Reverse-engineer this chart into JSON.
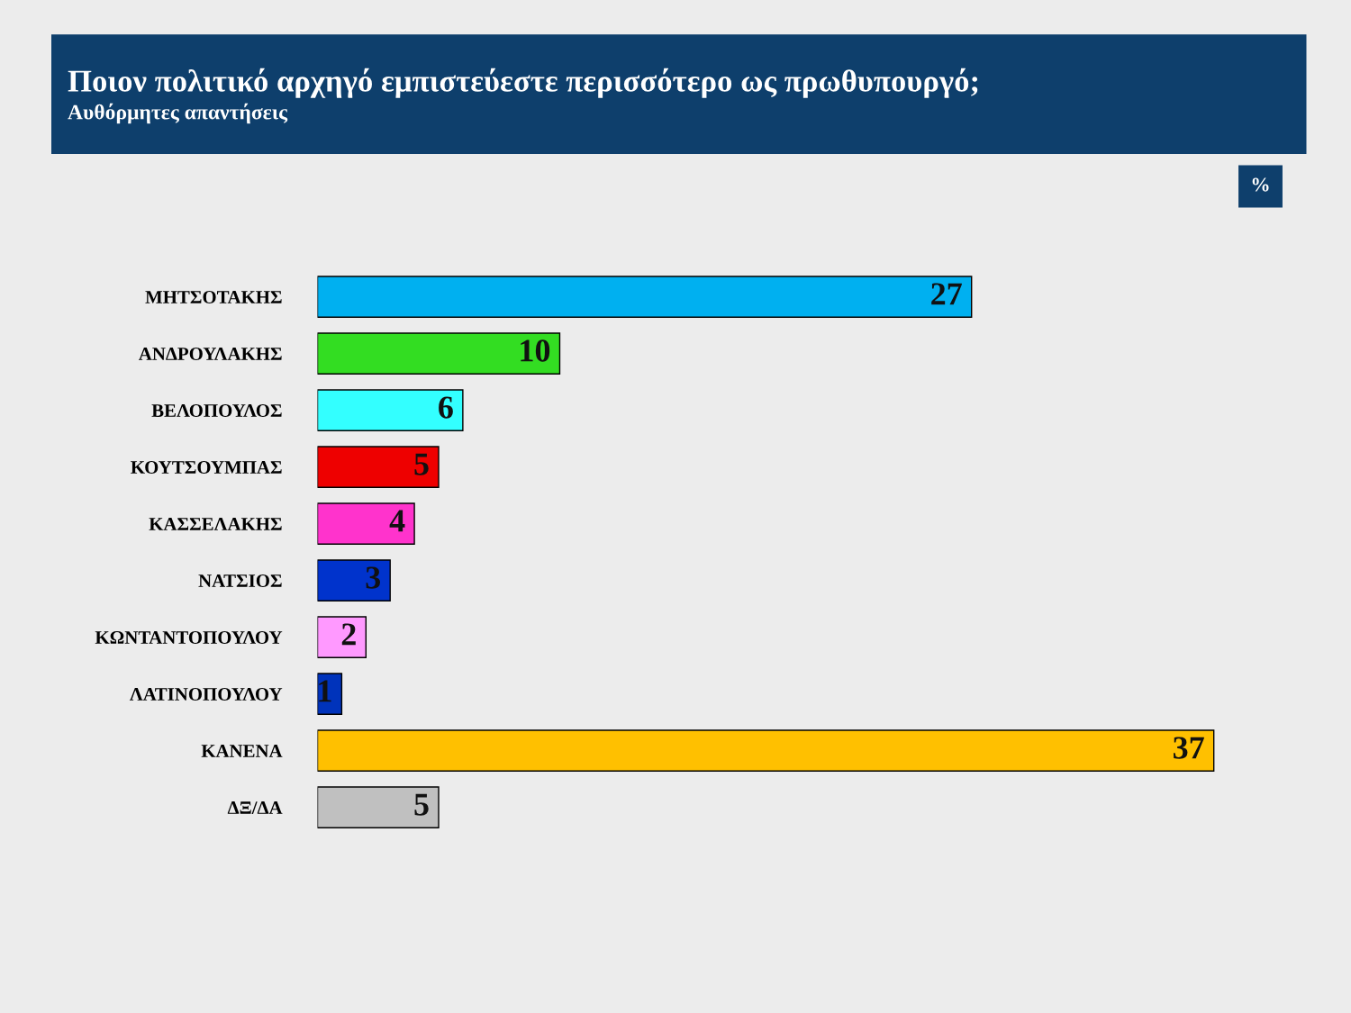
{
  "chart_data": {
    "type": "bar",
    "orientation": "horizontal",
    "title": "Ποιον πολιτικό αρχηγό εμπιστεύεστε περισσότερο ως πρωθυπουργό;",
    "subtitle": "Αυθόρμητες απαντήσεις",
    "annotations": [
      "%"
    ],
    "categories": [
      "ΜΗΤΣΟΤΑΚΗΣ",
      "ΑΝΔΡΟΥΛΑΚΗΣ",
      "ΒΕΛΟΠΟΥΛΟΣ",
      "ΚΟΥΤΣΟΥΜΠΑΣ",
      "ΚΑΣΣΕΛΑΚΗΣ",
      "ΝΑΤΣΙΟΣ",
      "ΚΩΝΤΑΝΤΟΠΟΥΛΟΥ",
      "ΛΑΤΙΝΟΠΟΥΛΟΥ",
      "ΚΑΝΕΝΑ",
      "ΔΞ/ΔΑ"
    ],
    "values": [
      27,
      10,
      6,
      5,
      4,
      3,
      2,
      1,
      37,
      5
    ],
    "colors": [
      "#00b0f0",
      "#33dd22",
      "#33ffff",
      "#ee0000",
      "#ff33cc",
      "#0033cc",
      "#ff99ff",
      "#0033bb",
      "#ffc000",
      "#c0c0c0"
    ],
    "data_labels": true,
    "grid": false,
    "legend": false
  }
}
